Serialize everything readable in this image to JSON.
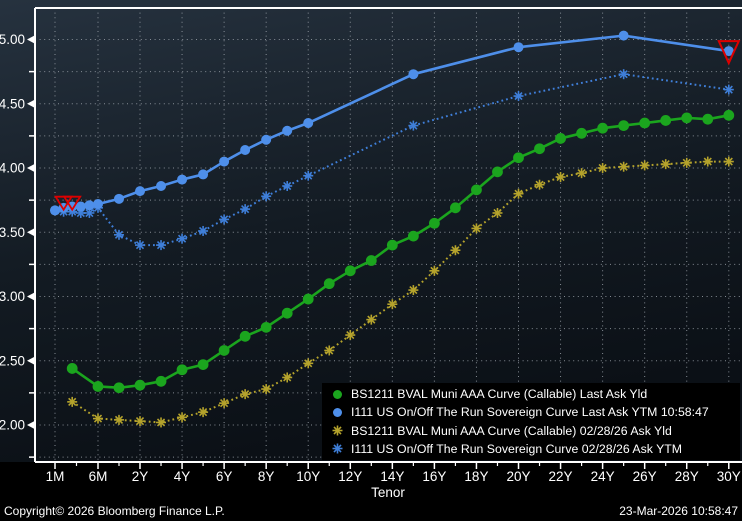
{
  "chart_data": {
    "type": "line",
    "title": "",
    "xlabel": "Tenor",
    "x_tick_labels": [
      "1M",
      "6M",
      "2Y",
      "4Y",
      "6Y",
      "8Y",
      "10Y",
      "12Y",
      "14Y",
      "16Y",
      "18Y",
      "20Y",
      "22Y",
      "24Y",
      "26Y",
      "28Y",
      "30Y"
    ],
    "y_tick_labels": [
      "2.00",
      "2.50",
      "3.00",
      "3.50",
      "4.00",
      "4.50",
      "5.00"
    ],
    "y_minor_step": 0.25,
    "ylim": [
      1.74,
      5.27
    ],
    "grid": true,
    "legend_position": "bottom-right",
    "series": [
      {
        "id": "muni-last",
        "name": "BS1211 BVAL Muni AAA Curve (Callable) Last Ask Yld",
        "color": "#1ba51e",
        "line": "solid",
        "marker": "circle",
        "points": [
          [
            "3M",
            2.44
          ],
          [
            "6M",
            2.3
          ],
          [
            "1Y",
            2.29
          ],
          [
            "2Y",
            2.31
          ],
          [
            "3Y",
            2.34
          ],
          [
            "4Y",
            2.43
          ],
          [
            "5Y",
            2.47
          ],
          [
            "6Y",
            2.58
          ],
          [
            "7Y",
            2.69
          ],
          [
            "8Y",
            2.76
          ],
          [
            "9Y",
            2.87
          ],
          [
            "10Y",
            2.98
          ],
          [
            "11Y",
            3.1
          ],
          [
            "12Y",
            3.2
          ],
          [
            "13Y",
            3.28
          ],
          [
            "14Y",
            3.4
          ],
          [
            "15Y",
            3.47
          ],
          [
            "16Y",
            3.57
          ],
          [
            "17Y",
            3.69
          ],
          [
            "18Y",
            3.83
          ],
          [
            "19Y",
            3.97
          ],
          [
            "20Y",
            4.08
          ],
          [
            "21Y",
            4.15
          ],
          [
            "22Y",
            4.23
          ],
          [
            "23Y",
            4.27
          ],
          [
            "24Y",
            4.31
          ],
          [
            "25Y",
            4.33
          ],
          [
            "26Y",
            4.35
          ],
          [
            "27Y",
            4.37
          ],
          [
            "28Y",
            4.39
          ],
          [
            "29Y",
            4.38
          ],
          [
            "30Y",
            4.41
          ]
        ]
      },
      {
        "id": "sov-last",
        "name": "I111 US On/Off The Run Sovereign Curve Last Ask YTM 10:58:47",
        "color": "#4e8fea",
        "line": "solid",
        "marker": "circle",
        "points": [
          [
            "1M",
            3.67
          ],
          [
            "2M",
            3.69
          ],
          [
            "3M",
            3.7
          ],
          [
            "4M",
            3.7
          ],
          [
            "5M",
            3.71
          ],
          [
            "6M",
            3.72
          ],
          [
            "1Y",
            3.76
          ],
          [
            "2Y",
            3.82
          ],
          [
            "3Y",
            3.86
          ],
          [
            "4Y",
            3.91
          ],
          [
            "5Y",
            3.95
          ],
          [
            "6Y",
            4.05
          ],
          [
            "7Y",
            4.14
          ],
          [
            "8Y",
            4.22
          ],
          [
            "9Y",
            4.29
          ],
          [
            "10Y",
            4.35
          ],
          [
            "15Y",
            4.73
          ],
          [
            "20Y",
            4.94
          ],
          [
            "25Y",
            5.03
          ],
          [
            "30Y",
            4.91
          ]
        ]
      },
      {
        "id": "muni-prior",
        "name": "BS1211 BVAL Muni AAA Curve (Callable) 02/28/26 Ask Yld",
        "color": "#b5a32c",
        "line": "dotted",
        "marker": "asterisk",
        "points": [
          [
            "3M",
            2.18
          ],
          [
            "6M",
            2.05
          ],
          [
            "1Y",
            2.04
          ],
          [
            "2Y",
            2.03
          ],
          [
            "3Y",
            2.02
          ],
          [
            "4Y",
            2.06
          ],
          [
            "5Y",
            2.1
          ],
          [
            "6Y",
            2.17
          ],
          [
            "7Y",
            2.24
          ],
          [
            "8Y",
            2.28
          ],
          [
            "9Y",
            2.37
          ],
          [
            "10Y",
            2.48
          ],
          [
            "11Y",
            2.58
          ],
          [
            "12Y",
            2.7
          ],
          [
            "13Y",
            2.82
          ],
          [
            "14Y",
            2.94
          ],
          [
            "15Y",
            3.05
          ],
          [
            "16Y",
            3.2
          ],
          [
            "17Y",
            3.36
          ],
          [
            "18Y",
            3.53
          ],
          [
            "19Y",
            3.65
          ],
          [
            "20Y",
            3.8
          ],
          [
            "21Y",
            3.87
          ],
          [
            "22Y",
            3.93
          ],
          [
            "23Y",
            3.96
          ],
          [
            "24Y",
            4.0
          ],
          [
            "25Y",
            4.01
          ],
          [
            "26Y",
            4.02
          ],
          [
            "27Y",
            4.03
          ],
          [
            "28Y",
            4.04
          ],
          [
            "29Y",
            4.05
          ],
          [
            "30Y",
            4.05
          ]
        ]
      },
      {
        "id": "sov-prior",
        "name": "I111 US On/Off The Run Sovereign Curve 02/28/26 Ask YTM",
        "color": "#3f7fd9",
        "line": "dotted",
        "marker": "asterisk",
        "points": [
          [
            "1M",
            3.67
          ],
          [
            "2M",
            3.66
          ],
          [
            "3M",
            3.66
          ],
          [
            "4M",
            3.65
          ],
          [
            "5M",
            3.65
          ],
          [
            "6M",
            3.69
          ],
          [
            "1Y",
            3.48
          ],
          [
            "2Y",
            3.4
          ],
          [
            "3Y",
            3.4
          ],
          [
            "4Y",
            3.45
          ],
          [
            "5Y",
            3.51
          ],
          [
            "6Y",
            3.6
          ],
          [
            "7Y",
            3.68
          ],
          [
            "8Y",
            3.78
          ],
          [
            "9Y",
            3.86
          ],
          [
            "10Y",
            3.94
          ],
          [
            "15Y",
            4.33
          ],
          [
            "20Y",
            4.56
          ],
          [
            "25Y",
            4.73
          ],
          [
            "30Y",
            4.61
          ]
        ]
      }
    ],
    "alert_markers": [
      {
        "tenor": "2M",
        "value": 3.73,
        "size": "small"
      },
      {
        "tenor": "3M",
        "value": 3.73,
        "size": "small"
      },
      {
        "tenor": "30Y",
        "value": 4.91,
        "size": "large"
      }
    ],
    "alert_color": "#dd0000"
  },
  "footer": {
    "copyright": "Copyright© 2026 Bloomberg Finance L.P.",
    "datetime": "23-Mar-2026 10:58:47"
  },
  "colors": {
    "background_top": "#26323f",
    "background_mid": "#131b23",
    "background_bottom": "#0b1016",
    "axis": "#ffffff",
    "grid": "#99a0a8",
    "legend_background": "#000000",
    "text": "#ffffff"
  }
}
